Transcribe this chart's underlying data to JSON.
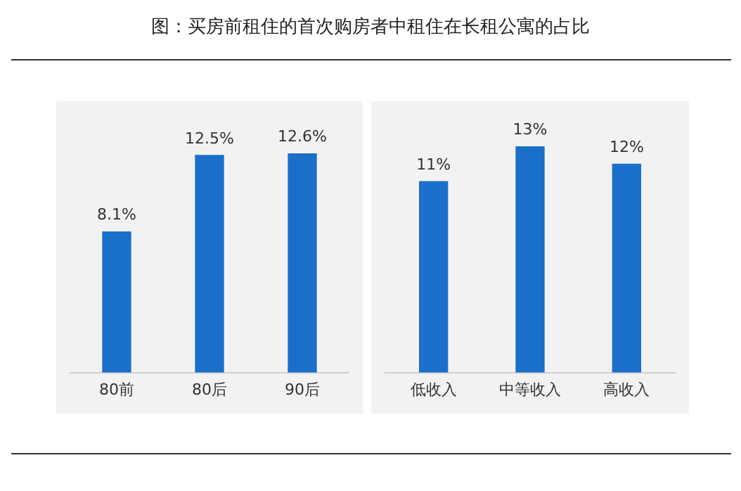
{
  "chart_data": [
    {
      "type": "bar",
      "title": "图：买房前租住的首次购房者中租住在长租公寓的占比",
      "categories": [
        "80前",
        "80后",
        "90后"
      ],
      "values": [
        8.1,
        12.5,
        12.6
      ],
      "color": "#1a6fc9",
      "value_labels": [
        "8.1%",
        "12.5%",
        "12.6%"
      ],
      "grid": false,
      "legend": false
    },
    {
      "type": "bar",
      "categories": [
        "低收入",
        "中等收入",
        "高收入"
      ],
      "values": [
        11,
        13,
        12
      ],
      "color": "#1a6fc9",
      "value_labels": [
        "11%",
        "13%",
        "12%"
      ],
      "grid": false,
      "legend": false
    }
  ]
}
